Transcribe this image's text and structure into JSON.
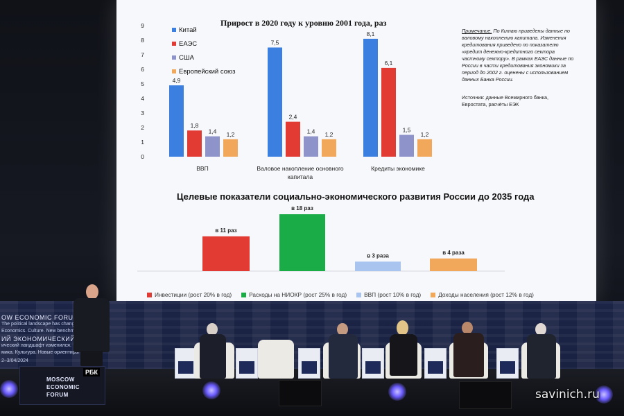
{
  "screen": {
    "chart1": {
      "title": "Прирост в 2020 году к уровню 2001 года, раз",
      "note": {
        "lead": "Примечание.",
        "text": "По Китаю приведены данные по валовому накоплению капитала. Изменения кредитования приведено по показателю «кредит денежно-кредитного сектора частному сектору». В рамках ЕАЭС данные по России в части кредитования экономики за период до 2002 г. оценены с использованием данных Банка России."
      },
      "source": "Источник: данные Всемирного банка, Евростата, расчёты ЕЭК"
    },
    "chart2": {
      "title": "Целевые показатели социально-экономического развития России до 2035 года"
    }
  },
  "chart_data": [
    {
      "type": "bar",
      "title": "Прирост в 2020 году к уровню 2001 года, раз",
      "categories": [
        "ВВП",
        "Валовое накопление основного капитала",
        "Кредиты экономике"
      ],
      "series": [
        {
          "name": "Китай",
          "color": "#3b7fe0",
          "values": [
            4.9,
            7.5,
            8.1
          ],
          "labels": [
            "4,9",
            "7,5",
            "8,1"
          ]
        },
        {
          "name": "ЕАЭС",
          "color": "#e23b34",
          "values": [
            1.8,
            2.4,
            6.1
          ],
          "labels": [
            "1,8",
            "2,4",
            "6,1"
          ]
        },
        {
          "name": "США",
          "color": "#8e93c9",
          "values": [
            1.4,
            1.4,
            1.5
          ],
          "labels": [
            "1,4",
            "1,4",
            "1,5"
          ]
        },
        {
          "name": "Европейский союз",
          "color": "#f2a85a",
          "values": [
            1.2,
            1.2,
            1.2
          ],
          "labels": [
            "1,2",
            "1,2",
            "1,2"
          ]
        }
      ],
      "yticks": [
        "0",
        "1",
        "2",
        "3",
        "4",
        "5",
        "6",
        "7",
        "8",
        "9"
      ],
      "ylim": [
        0,
        9
      ],
      "legend": "top-left"
    },
    {
      "type": "bar",
      "title": "Целевые показатели социально-экономического развития России до 2035 года",
      "categories": [
        "Инвестиции (рост 20% в год)",
        "Расходы на НИОКР (рост 25% в год)",
        "ВВП (рост 10% в год)",
        "Доходы населения (рост 12% в год)"
      ],
      "values": [
        11,
        18,
        3,
        4
      ],
      "labels": [
        "в 11 раз",
        "в 18 раз",
        "в 3 раза",
        "в 4 раза"
      ],
      "colors": [
        "#e23b34",
        "#1aad47",
        "#a9c4ee",
        "#f2a85a"
      ],
      "legend": "bottom"
    }
  ],
  "backdrop": {
    "lines": [
      "OW ECONOMIC FORUM",
      "The political landscape has changed.",
      "Economics. Culture. New benchmarks",
      "ИЙ ЭКОНОМИЧЕСКИЙ ФО",
      "ический ландшафт изменился.",
      "мика. Культура. Новые ориентиры",
      "2–3/04/2024"
    ]
  },
  "logo": {
    "l1": "MOSCOW",
    "l2": "ECONOMIC",
    "l3": "FORUM",
    "rbk": "РБК"
  },
  "watermark": "savinich.ru"
}
